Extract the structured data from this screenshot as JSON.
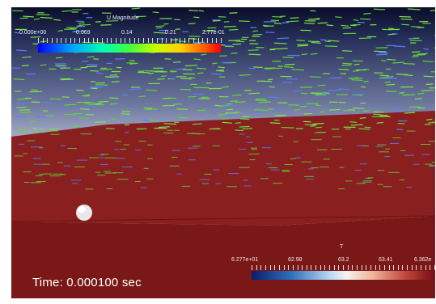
{
  "scene": {
    "time_label": "Time: 0.000100 sec"
  },
  "legend_velocity": {
    "title": "U Magnitude",
    "ticks": [
      "0.000e+00",
      "0.069",
      "0.14",
      "0.21",
      "2.77e-01"
    ]
  },
  "legend_temperature": {
    "title": "T",
    "ticks": [
      "6.277e+01",
      "62.98",
      "63.2",
      "63.41",
      "6.362e"
    ]
  },
  "colors": {
    "liquid": "#7a1d1d",
    "liquid_top": "#8b2020",
    "vector_green": "#5fd43a",
    "vector_blue": "#5a7cff"
  }
}
